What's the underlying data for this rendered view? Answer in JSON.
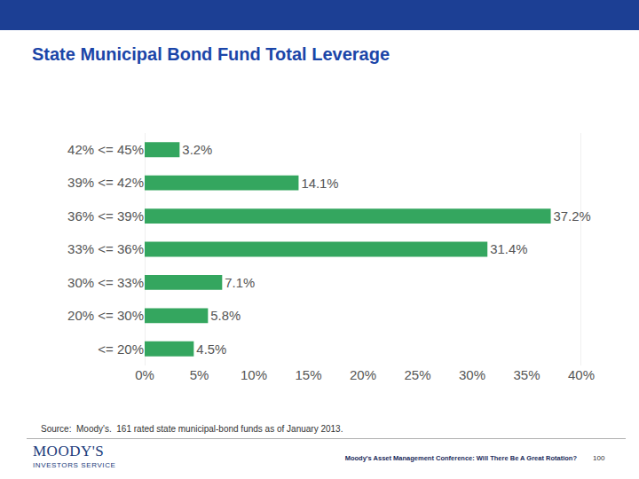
{
  "chart_data": {
    "type": "bar",
    "orientation": "horizontal",
    "title": "State Municipal Bond Fund Total Leverage",
    "categories": [
      "42% <= 45%",
      "39% <= 42%",
      "36% <= 39%",
      "33% <= 36%",
      "30% <= 33%",
      "20% <= 30%",
      "<= 20%"
    ],
    "values": [
      3.2,
      14.1,
      37.2,
      31.4,
      7.1,
      5.8,
      4.5
    ],
    "value_labels": [
      "3.2%",
      "14.1%",
      "37.2%",
      "31.4%",
      "7.1%",
      "5.8%",
      "4.5%"
    ],
    "data_labels": true,
    "color": "#34a65f",
    "xlim": [
      0,
      40
    ],
    "xticks": [
      {
        "value": 0,
        "label": "0%"
      },
      {
        "value": 5,
        "label": "5%"
      },
      {
        "value": 10,
        "label": "10%"
      },
      {
        "value": 15,
        "label": "15%"
      },
      {
        "value": 20,
        "label": "20%"
      },
      {
        "value": 25,
        "label": "25%"
      },
      {
        "value": 30,
        "label": "30%"
      },
      {
        "value": 35,
        "label": "35%"
      },
      {
        "value": 40,
        "label": "40%"
      }
    ],
    "grid": false
  },
  "source": "Source:  Moody's.  161 rated state municipal-bond funds as of January 2013.",
  "logo": {
    "name": "MOODY'S",
    "subtitle": "INVESTORS SERVICE"
  },
  "footer": "Moody's Asset Management Conference: Will There Be A Great Rotation?",
  "page_number": 100
}
